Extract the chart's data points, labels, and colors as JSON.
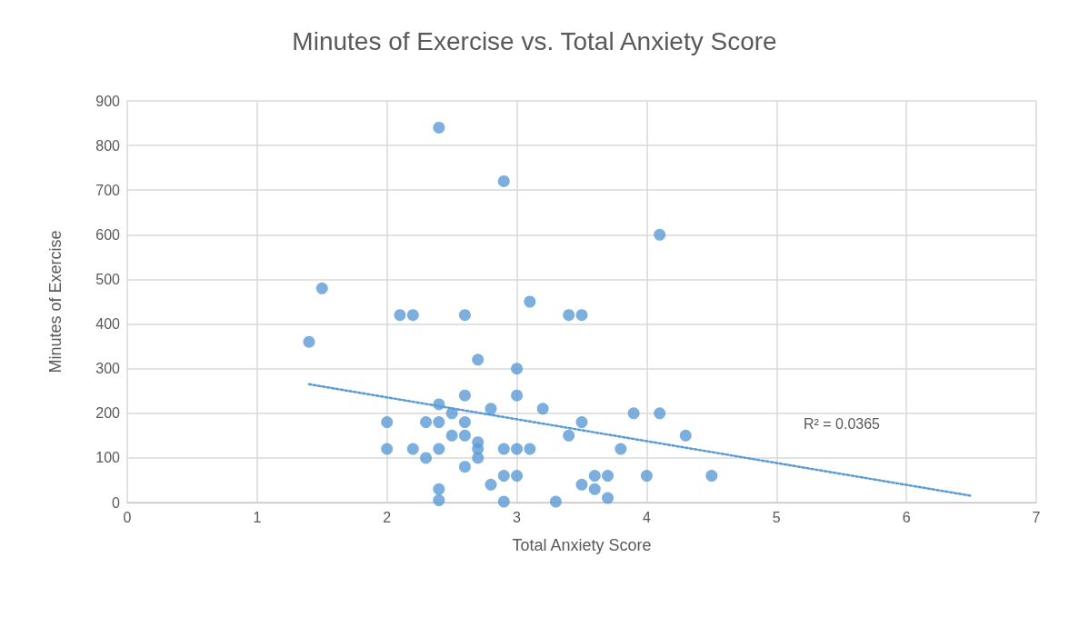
{
  "chart_data": {
    "type": "scatter",
    "title": "Minutes of Exercise vs. Total Anxiety Score",
    "xlabel": "Total Anxiety Score",
    "ylabel": "Minutes of Exercise",
    "series": [
      {
        "color": "#5b9bd5",
        "x": [
          2.4,
          2.9,
          4.1,
          1.5,
          1.4,
          2.1,
          2.2,
          2.6,
          3.1,
          3.4,
          3.5,
          2.7,
          3.0,
          2.6,
          3.0,
          2.4,
          2.8,
          3.2,
          2.5,
          3.9,
          4.1,
          2.0,
          2.3,
          2.4,
          2.6,
          3.5,
          2.5,
          2.6,
          3.4,
          4.3,
          2.7,
          2.0,
          2.2,
          2.4,
          2.7,
          2.9,
          3.0,
          3.1,
          3.8,
          2.3,
          2.7,
          2.6,
          2.9,
          3.0,
          3.6,
          3.7,
          4.0,
          4.5,
          2.8,
          3.5,
          2.4,
          3.6,
          2.4,
          2.9,
          3.3,
          3.7
        ],
        "values": [
          840,
          720,
          600,
          480,
          360,
          420,
          420,
          420,
          450,
          420,
          420,
          320,
          300,
          240,
          240,
          220,
          210,
          210,
          200,
          200,
          200,
          180,
          180,
          180,
          180,
          180,
          150,
          150,
          150,
          150,
          135,
          120,
          120,
          120,
          120,
          120,
          120,
          120,
          120,
          100,
          100,
          80,
          60,
          60,
          60,
          60,
          60,
          60,
          40,
          40,
          30,
          30,
          5,
          2,
          2,
          10
        ]
      },
      {
        "type": "line",
        "color": "#5b9bd5",
        "line_style": "dotted",
        "marker": "none",
        "x": [
          1.4,
          6.5
        ],
        "values": [
          265,
          15
        ]
      }
    ],
    "xlim": [
      0,
      7
    ],
    "xticks": [
      0,
      1,
      2,
      3,
      4,
      5,
      6,
      7
    ],
    "ylim": [
      0,
      900
    ],
    "yticks": [
      0,
      100,
      200,
      300,
      400,
      500,
      600,
      700,
      800,
      900
    ],
    "grid": true,
    "marker": "circle",
    "annotations": [
      "R² = 0.0365"
    ]
  }
}
